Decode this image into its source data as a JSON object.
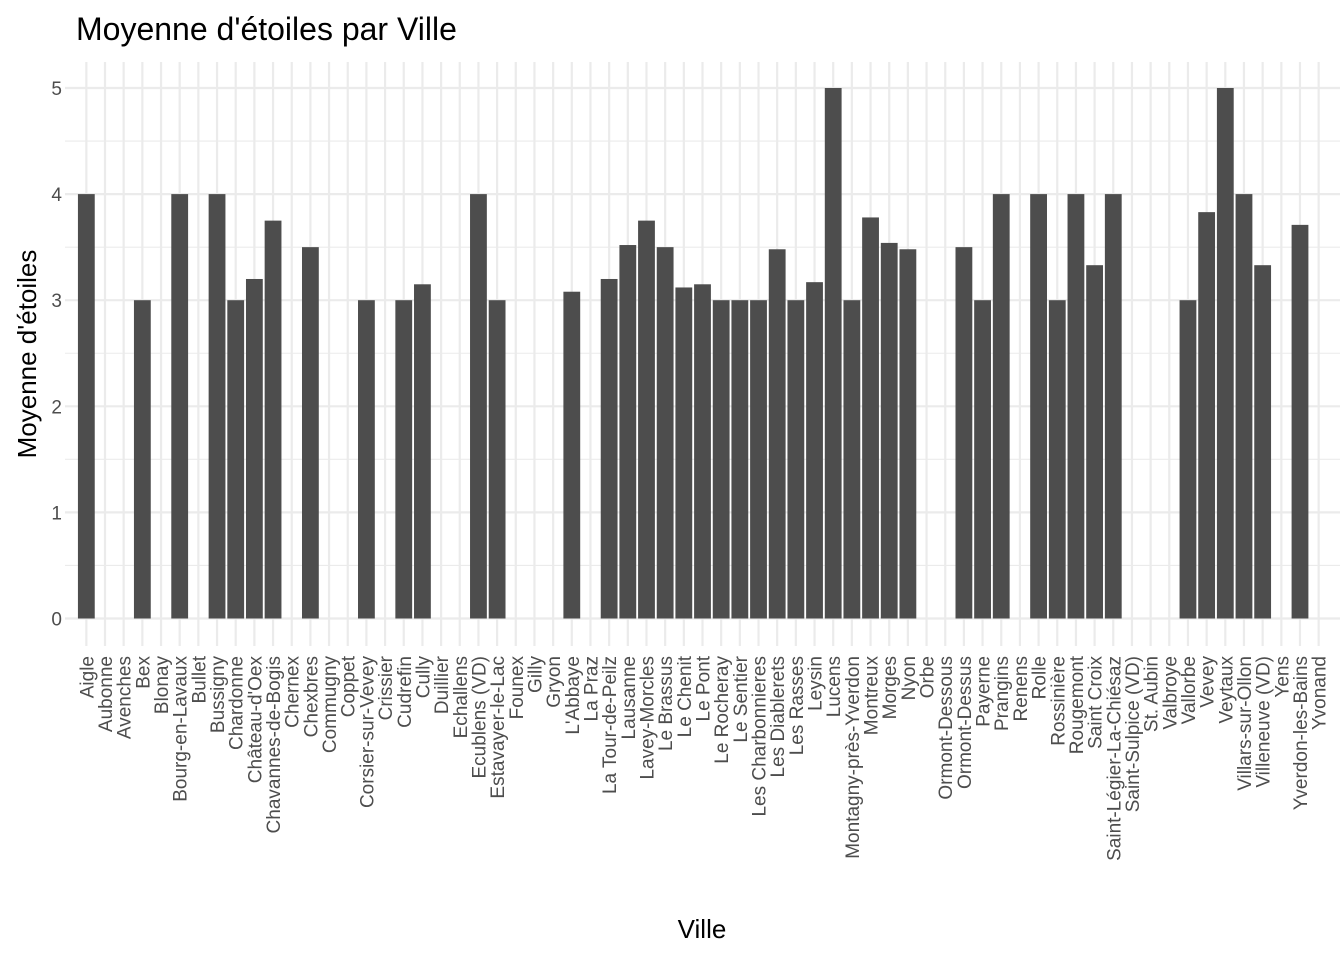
{
  "chart_data": {
    "type": "bar",
    "title": "Moyenne d'étoiles par Ville",
    "xlabel": "Ville",
    "ylabel": "Moyenne d'étoiles",
    "ylim": [
      0,
      5
    ],
    "yticks": [
      0,
      1,
      2,
      3,
      4,
      5
    ],
    "grid": true,
    "bar_color": "#4d4d4d",
    "categories": [
      "Aigle",
      "Aubonne",
      "Avenches",
      "Bex",
      "Blonay",
      "Bourg-en-Lavaux",
      "Bullet",
      "Bussigny",
      "Chardonne",
      "Château-d'Oex",
      "Chavannes-de-Bogis",
      "Chernex",
      "Chexbres",
      "Commugny",
      "Coppet",
      "Corsier-sur-Vevey",
      "Crissier",
      "Cudrefin",
      "Cully",
      "Duillier",
      "Echallens",
      "Ecublens (VD)",
      "Estavayer-le-Lac",
      "Founex",
      "Gilly",
      "Gryon",
      "L'Abbaye",
      "La Praz",
      "La Tour-de-Peilz",
      "Lausanne",
      "Lavey-Morcles",
      "Le Brassus",
      "Le Chenit",
      "Le Pont",
      "Le Rocheray",
      "Le Sentier",
      "Les Charbonnieres",
      "Les Diablerets",
      "Les Rasses",
      "Leysin",
      "Lucens",
      "Montagny-près-Yverdon",
      "Montreux",
      "Morges",
      "Nyon",
      "Orbe",
      "Ormont-Dessous",
      "Ormont-Dessus",
      "Payerne",
      "Prangins",
      "Renens",
      "Rolle",
      "Rossinière",
      "Rougemont",
      "Saint Croix",
      "Saint-Légier-La-Chiésaz",
      "Saint-Sulpice (VD)",
      "St. Aubin",
      "Valbroye",
      "Vallorbe",
      "Vevey",
      "Veytaux",
      "Villars-sur-Ollon",
      "Villeneuve (VD)",
      "Yens",
      "Yverdon-les-Bains",
      "Yvonand"
    ],
    "values": [
      4,
      0,
      0,
      3,
      0,
      4,
      0,
      4,
      3,
      3.2,
      3.75,
      0,
      3.5,
      0,
      0,
      3,
      0,
      3,
      3.15,
      0,
      0,
      4,
      3,
      0,
      0,
      0,
      3.08,
      0,
      3.2,
      3.52,
      3.75,
      3.5,
      3.12,
      3.15,
      3,
      3,
      3,
      3.48,
      3,
      3.17,
      5,
      3,
      3.78,
      3.54,
      3.48,
      0,
      0,
      3.5,
      3,
      4,
      0,
      4,
      3,
      4,
      3.33,
      4,
      0,
      0,
      0,
      3,
      3.83,
      5,
      4,
      3.33,
      0,
      3.71,
      0
    ]
  }
}
